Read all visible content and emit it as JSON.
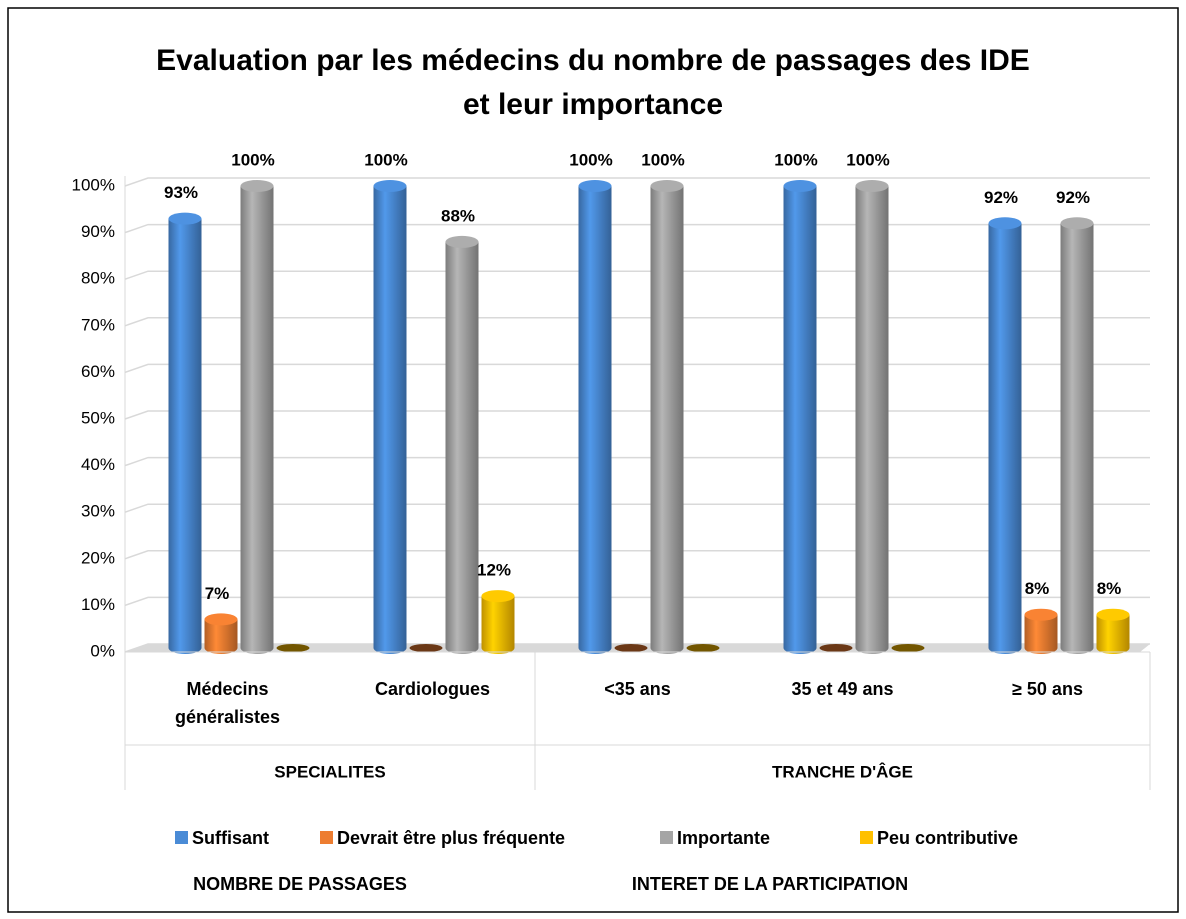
{
  "chart_data": {
    "type": "bar3d",
    "title": [
      "Evaluation par les médecins du nombre de passages des IDE",
      "et leur importance"
    ],
    "categories": [
      "Médecins généralistes",
      "Cardiologues",
      "<35 ans",
      "35 et 49 ans",
      "≥ 50 ans"
    ],
    "category_groups": [
      {
        "name": "SPECIALITES",
        "span": [
          0,
          1
        ]
      },
      {
        "name": "TRANCHE D'ÂGE",
        "span": [
          2,
          4
        ]
      }
    ],
    "series": [
      {
        "name": "Suffisant",
        "color": "#4a8bd6",
        "values": [
          93,
          100,
          100,
          100,
          92
        ],
        "value_labels": [
          "93%",
          "100%",
          "100%",
          "100%",
          "92%"
        ]
      },
      {
        "name": "Devrait être plus fréquente",
        "color": "#ed7d31",
        "values": [
          7,
          0,
          0,
          0,
          8
        ],
        "value_labels": [
          "7%",
          null,
          null,
          null,
          "8%"
        ]
      },
      {
        "name": "Importante",
        "color": "#a5a5a5",
        "values": [
          100,
          88,
          100,
          100,
          92
        ],
        "value_labels": [
          "100%",
          "88%",
          "100%",
          "100%",
          "92%"
        ]
      },
      {
        "name": "Peu contributive",
        "color": "#ffc000",
        "values": [
          0,
          12,
          0,
          0,
          8
        ],
        "value_labels": [
          null,
          "12%",
          null,
          null,
          "8%"
        ]
      }
    ],
    "legend_groups": [
      "NOMBRE DE PASSAGES",
      "INTERET DE LA PARTICIPATION"
    ],
    "ylim": [
      0,
      100
    ],
    "yticks": [
      {
        "value": 0,
        "label": "0%"
      },
      {
        "value": 10,
        "label": "10%"
      },
      {
        "value": 20,
        "label": "20%"
      },
      {
        "value": 30,
        "label": "30%"
      },
      {
        "value": 40,
        "label": "40%"
      },
      {
        "value": 50,
        "label": "50%"
      },
      {
        "value": 60,
        "label": "60%"
      },
      {
        "value": 70,
        "label": "70%"
      },
      {
        "value": 80,
        "label": "80%"
      },
      {
        "value": 90,
        "label": "90%"
      },
      {
        "value": 100,
        "label": "100%"
      }
    ],
    "grid": true,
    "legend": "bottom"
  }
}
